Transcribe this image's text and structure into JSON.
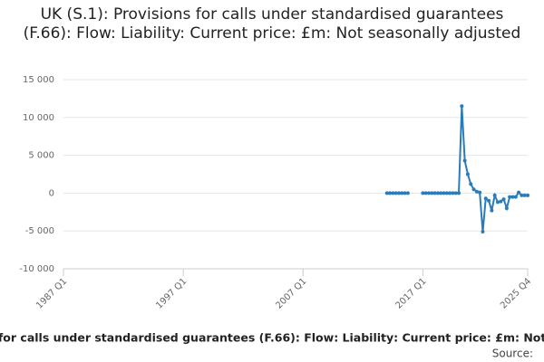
{
  "chart_data": {
    "type": "line",
    "title": "UK (S.1): Provisions for calls under standardised guarantees (F.66): Flow: Liability: Current price: £m: Not seasonally adjusted",
    "source": "Source:",
    "categories": [
      "1987 Q1",
      null,
      null,
      null,
      null,
      null,
      null,
      null,
      null,
      null,
      null,
      null,
      null,
      null,
      null,
      null,
      null,
      null,
      null,
      null,
      null,
      null,
      null,
      null,
      null,
      null,
      null,
      null,
      null,
      null,
      null,
      null,
      null,
      null,
      null,
      null,
      null,
      null,
      null,
      null,
      "1997 Q1",
      null,
      null,
      null,
      null,
      null,
      null,
      null,
      null,
      null,
      null,
      null,
      null,
      null,
      null,
      null,
      null,
      null,
      null,
      null,
      null,
      null,
      null,
      null,
      null,
      null,
      null,
      null,
      null,
      null,
      null,
      null,
      null,
      null,
      null,
      null,
      null,
      null,
      null,
      null,
      "2007 Q1",
      null,
      null,
      null,
      null,
      null,
      null,
      null,
      null,
      null,
      null,
      null,
      null,
      null,
      null,
      null,
      null,
      null,
      null,
      null,
      null,
      null,
      null,
      null,
      null,
      null,
      null,
      null,
      null,
      null,
      null,
      null,
      null,
      null,
      null,
      null,
      null,
      null,
      null,
      null,
      "2017 Q1",
      null,
      null,
      null,
      null,
      null,
      null,
      null,
      null,
      null,
      null,
      null,
      null,
      null,
      null,
      null,
      null,
      null,
      null,
      null,
      null,
      null,
      null,
      null,
      null,
      null,
      null,
      null,
      null,
      null,
      null,
      null,
      null,
      null,
      null,
      "2025 Q4"
    ],
    "series": [
      {
        "name": "Provisions",
        "color": "#2b7bb9",
        "values": [
          null,
          null,
          null,
          null,
          null,
          null,
          null,
          null,
          null,
          null,
          null,
          null,
          null,
          null,
          null,
          null,
          null,
          null,
          null,
          null,
          null,
          null,
          null,
          null,
          null,
          null,
          null,
          null,
          null,
          null,
          null,
          null,
          null,
          null,
          null,
          null,
          null,
          null,
          null,
          null,
          null,
          null,
          null,
          null,
          null,
          null,
          null,
          null,
          null,
          null,
          null,
          null,
          null,
          null,
          null,
          null,
          null,
          null,
          null,
          null,
          null,
          null,
          null,
          null,
          null,
          null,
          null,
          null,
          null,
          null,
          null,
          null,
          null,
          null,
          null,
          null,
          null,
          null,
          null,
          null,
          null,
          null,
          null,
          null,
          null,
          null,
          null,
          null,
          null,
          null,
          null,
          null,
          null,
          null,
          null,
          null,
          null,
          null,
          null,
          null,
          null,
          null,
          null,
          null,
          null,
          null,
          null,
          null,
          0,
          0,
          0,
          0,
          0,
          0,
          0,
          0,
          null,
          null,
          null,
          null,
          0,
          0,
          0,
          0,
          0,
          0,
          0,
          0,
          0,
          0,
          0,
          0,
          0,
          11500,
          4300,
          2500,
          1200,
          500,
          200,
          100,
          -5100,
          -700,
          -1000,
          -2300,
          -300,
          -1200,
          -1100,
          -800,
          -2000,
          -500,
          -500,
          -500,
          100,
          -300,
          -300,
          -300
        ]
      }
    ],
    "ylim": [
      -10000,
      15000
    ],
    "yticks": [
      {
        "value": -10000,
        "label": "-10 000"
      },
      {
        "value": -5000,
        "label": "-5 000"
      },
      0,
      {
        "value": 5000,
        "label": "5 000"
      },
      {
        "value": 10000,
        "label": "10 000"
      },
      {
        "value": 15000,
        "label": "15 000"
      }
    ],
    "grid": true
  }
}
